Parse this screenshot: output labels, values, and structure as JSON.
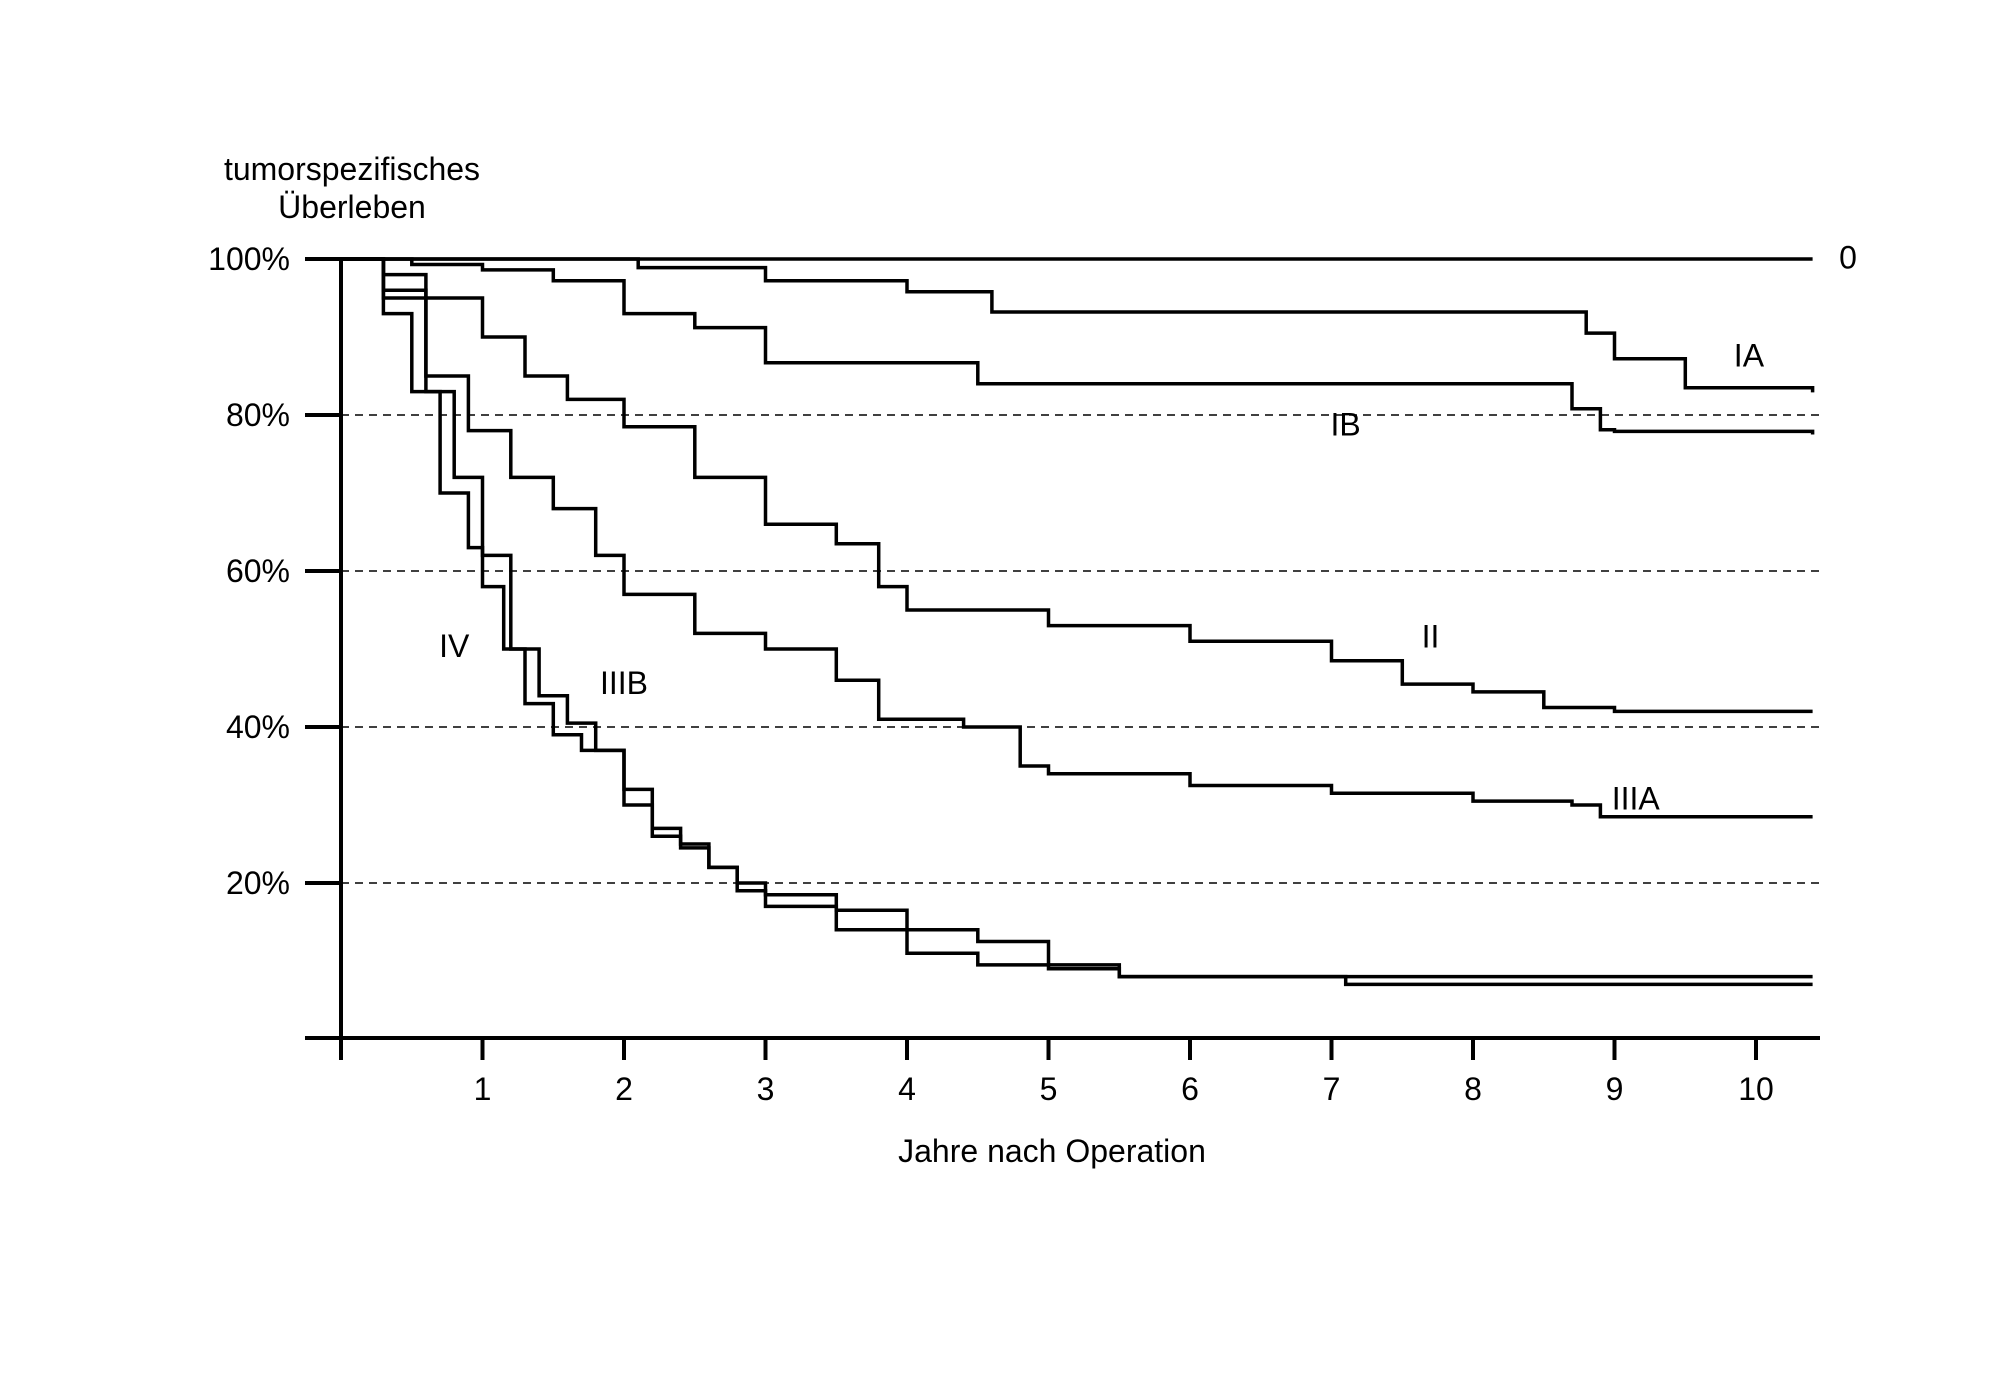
{
  "chart_data": {
    "type": "line",
    "ylabel_lines": [
      "tumorspezifisches",
      "Überleben"
    ],
    "xlabel": "Jahre nach Operation",
    "xlim": [
      0,
      10.4
    ],
    "ylim": [
      0,
      100
    ],
    "x_ticks": [
      1,
      2,
      3,
      4,
      5,
      6,
      7,
      8,
      9,
      10
    ],
    "x_tick_labels": [
      "1",
      "2",
      "3",
      "4",
      "5",
      "6",
      "7",
      "8",
      "9",
      "10"
    ],
    "y_ticks": [
      20,
      40,
      60,
      80,
      100
    ],
    "y_tick_labels": [
      "20%",
      "40%",
      "60%",
      "80%",
      "100%"
    ],
    "grid": "dashed horizontal at 20%, 40%, 60%, 80%",
    "series": [
      {
        "name": "0",
        "label_at": [
          10.65,
          98.8
        ],
        "x": [
          0,
          10.4
        ],
        "y": [
          100,
          100
        ]
      },
      {
        "name": "IA",
        "label_at": [
          9.95,
          86.2
        ],
        "x": [
          0,
          1.0,
          2.0,
          2.1,
          3.0,
          4.0,
          4.6,
          8.6,
          8.8,
          9.0,
          9.5,
          10.4
        ],
        "y": [
          100,
          100,
          100,
          98.9,
          97.2,
          95.8,
          93.2,
          93.2,
          90.5,
          87.2,
          83.5,
          82.9
        ]
      },
      {
        "name": "IB",
        "label_at": [
          7.1,
          77.4
        ],
        "x": [
          0,
          0.5,
          1.0,
          1.5,
          2.0,
          2.5,
          3.0,
          4.0,
          4.5,
          5.0,
          7.0,
          8.0,
          8.7,
          8.9,
          9.0,
          10.4
        ],
        "y": [
          100,
          99.3,
          98.6,
          97.2,
          93.0,
          91.2,
          86.7,
          86.7,
          84.0,
          84.0,
          84.0,
          84.0,
          80.8,
          78.1,
          77.9,
          77.5
        ]
      },
      {
        "name": "II",
        "label_at": [
          7.7,
          50.2
        ],
        "x": [
          0,
          0.3,
          0.6,
          1.0,
          1.3,
          1.6,
          2.0,
          2.5,
          3.0,
          3.5,
          3.8,
          4.0,
          5.0,
          6.0,
          7.0,
          7.5,
          8.0,
          8.5,
          9.0,
          10.4
        ],
        "y": [
          100,
          98.0,
          95.0,
          90.0,
          85.0,
          82.0,
          78.5,
          72.0,
          66.0,
          63.5,
          58.0,
          55.0,
          53.0,
          51.0,
          48.5,
          45.5,
          44.5,
          42.5,
          42.0,
          42.0
        ]
      },
      {
        "name": "IIIA",
        "label_at": [
          9.15,
          29.4
        ],
        "x": [
          0,
          0.3,
          0.6,
          0.9,
          1.2,
          1.5,
          1.8,
          2.0,
          2.5,
          3.0,
          3.5,
          3.8,
          4.4,
          4.8,
          5.0,
          6.0,
          7.0,
          8.0,
          8.7,
          8.9,
          10.4
        ],
        "y": [
          100,
          95.0,
          85.0,
          78.0,
          72.0,
          68.0,
          62.0,
          57.0,
          52.0,
          50.0,
          46.0,
          41.0,
          40.0,
          35.0,
          34.0,
          32.5,
          31.5,
          30.5,
          30.0,
          28.5,
          28.5
        ]
      },
      {
        "name": "IIIB",
        "label_at": [
          2.0,
          44.2
        ],
        "x": [
          0,
          0.3,
          0.6,
          0.8,
          1.0,
          1.2,
          1.4,
          1.6,
          1.8,
          2.0,
          2.2,
          2.4,
          2.6,
          2.8,
          3.0,
          3.5,
          4.0,
          4.5,
          5.0,
          5.5,
          7.1,
          10.4
        ],
        "y": [
          100,
          96.0,
          83.0,
          72.0,
          62.0,
          50.0,
          44.0,
          40.5,
          37.0,
          30.0,
          26.0,
          24.5,
          22.0,
          20.0,
          18.5,
          16.5,
          14.0,
          12.5,
          9.5,
          8.0,
          7.0,
          7.0
        ]
      },
      {
        "name": "IV",
        "label_at": [
          0.8,
          49.0
        ],
        "x": [
          0,
          0.3,
          0.5,
          0.7,
          0.9,
          1.0,
          1.15,
          1.3,
          1.5,
          1.7,
          1.8,
          2.0,
          2.2,
          2.4,
          2.6,
          2.8,
          3.0,
          3.5,
          4.0,
          4.5,
          5.0,
          5.5,
          10.4
        ],
        "y": [
          100,
          93.0,
          83.0,
          70.0,
          63.0,
          58.0,
          50.0,
          43.0,
          39.0,
          37.0,
          37.0,
          32.0,
          27.0,
          25.0,
          22.0,
          19.0,
          17.0,
          14.0,
          11.0,
          9.5,
          9.0,
          8.0,
          8.0
        ]
      }
    ]
  }
}
